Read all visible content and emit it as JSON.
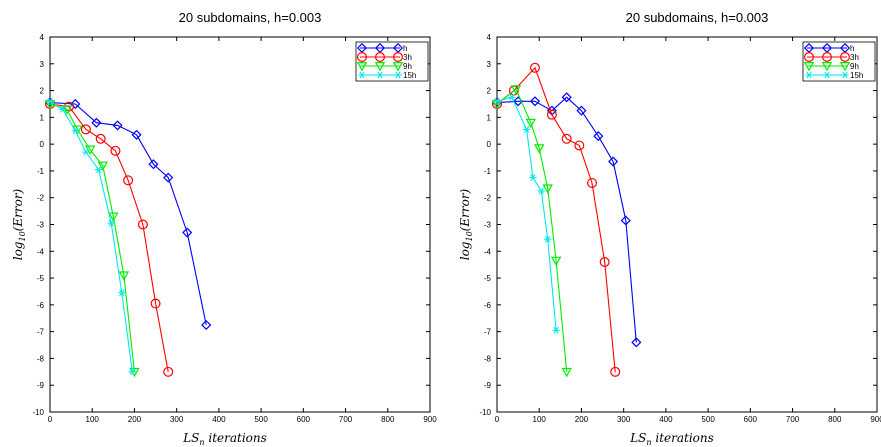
{
  "chart_data": [
    {
      "type": "line",
      "title": "20 subdomains, h=0.003",
      "xlabel": "LS_n iterations",
      "ylabel": "log10(Error)",
      "xlim": [
        0,
        900
      ],
      "ylim": [
        -10,
        4
      ],
      "xticks": [
        0,
        100,
        200,
        300,
        400,
        500,
        600,
        700,
        800,
        900
      ],
      "yticks": [
        -10,
        -9,
        -8,
        -7,
        -6,
        -5,
        -4,
        -3,
        -2,
        -1,
        0,
        1,
        2,
        3,
        4
      ],
      "legend_position": "top-right",
      "series": [
        {
          "name": "h",
          "color": "#0000ff",
          "marker": "diamond",
          "x": [
            0,
            60,
            110,
            160,
            205,
            245,
            280,
            325,
            370
          ],
          "y": [
            1.55,
            1.5,
            0.8,
            0.7,
            0.35,
            -0.75,
            -1.25,
            -3.3,
            -6.75
          ]
        },
        {
          "name": "3h",
          "color": "#ff0000",
          "marker": "circle",
          "x": [
            0,
            45,
            85,
            120,
            155,
            185,
            220,
            250,
            280
          ],
          "y": [
            1.5,
            1.4,
            0.55,
            0.2,
            -0.25,
            -1.35,
            -3.0,
            -5.95,
            -8.5
          ]
        },
        {
          "name": "9h",
          "color": "#00ee00",
          "marker": "triangle-down",
          "x": [
            0,
            40,
            65,
            95,
            125,
            150,
            175,
            200
          ],
          "y": [
            1.5,
            1.3,
            0.55,
            -0.2,
            -0.8,
            -2.7,
            -4.9,
            -8.5
          ]
        },
        {
          "name": "15h",
          "color": "#00e8e8",
          "marker": "asterisk",
          "x": [
            0,
            30,
            60,
            85,
            115,
            145,
            170,
            195
          ],
          "y": [
            1.6,
            1.3,
            0.5,
            -0.3,
            -0.95,
            -2.95,
            -5.55,
            -8.5
          ]
        }
      ]
    },
    {
      "type": "line",
      "title": "20 subdomains, h=0.003",
      "xlabel": "LS_n iterations",
      "ylabel": "log10(Error)",
      "xlim": [
        0,
        900
      ],
      "ylim": [
        -10,
        4
      ],
      "xticks": [
        0,
        100,
        200,
        300,
        400,
        500,
        600,
        700,
        800,
        900
      ],
      "yticks": [
        -10,
        -9,
        -8,
        -7,
        -6,
        -5,
        -4,
        -3,
        -2,
        -1,
        0,
        1,
        2,
        3,
        4
      ],
      "legend_position": "top-right",
      "series": [
        {
          "name": "h",
          "color": "#0000ff",
          "marker": "diamond",
          "x": [
            0,
            50,
            90,
            130,
            165,
            200,
            240,
            275,
            305,
            330
          ],
          "y": [
            1.55,
            1.6,
            1.6,
            1.25,
            1.75,
            1.25,
            0.3,
            -0.65,
            -2.85,
            -7.4
          ]
        },
        {
          "name": "3h",
          "color": "#ff0000",
          "marker": "circle",
          "x": [
            0,
            40,
            90,
            130,
            165,
            195,
            225,
            255,
            280
          ],
          "y": [
            1.5,
            2.0,
            2.85,
            1.1,
            0.2,
            -0.05,
            -1.45,
            -4.4,
            -8.5
          ]
        },
        {
          "name": "9h",
          "color": "#00ee00",
          "marker": "triangle-down",
          "x": [
            0,
            45,
            80,
            100,
            120,
            140,
            165
          ],
          "y": [
            1.5,
            2.05,
            0.8,
            -0.15,
            -1.65,
            -4.35,
            -8.5
          ]
        },
        {
          "name": "15h",
          "color": "#00e8e8",
          "marker": "asterisk",
          "x": [
            0,
            35,
            70,
            85,
            105,
            120,
            140
          ],
          "y": [
            1.6,
            1.75,
            0.55,
            -1.25,
            -1.75,
            -3.55,
            -6.95
          ]
        }
      ]
    }
  ]
}
